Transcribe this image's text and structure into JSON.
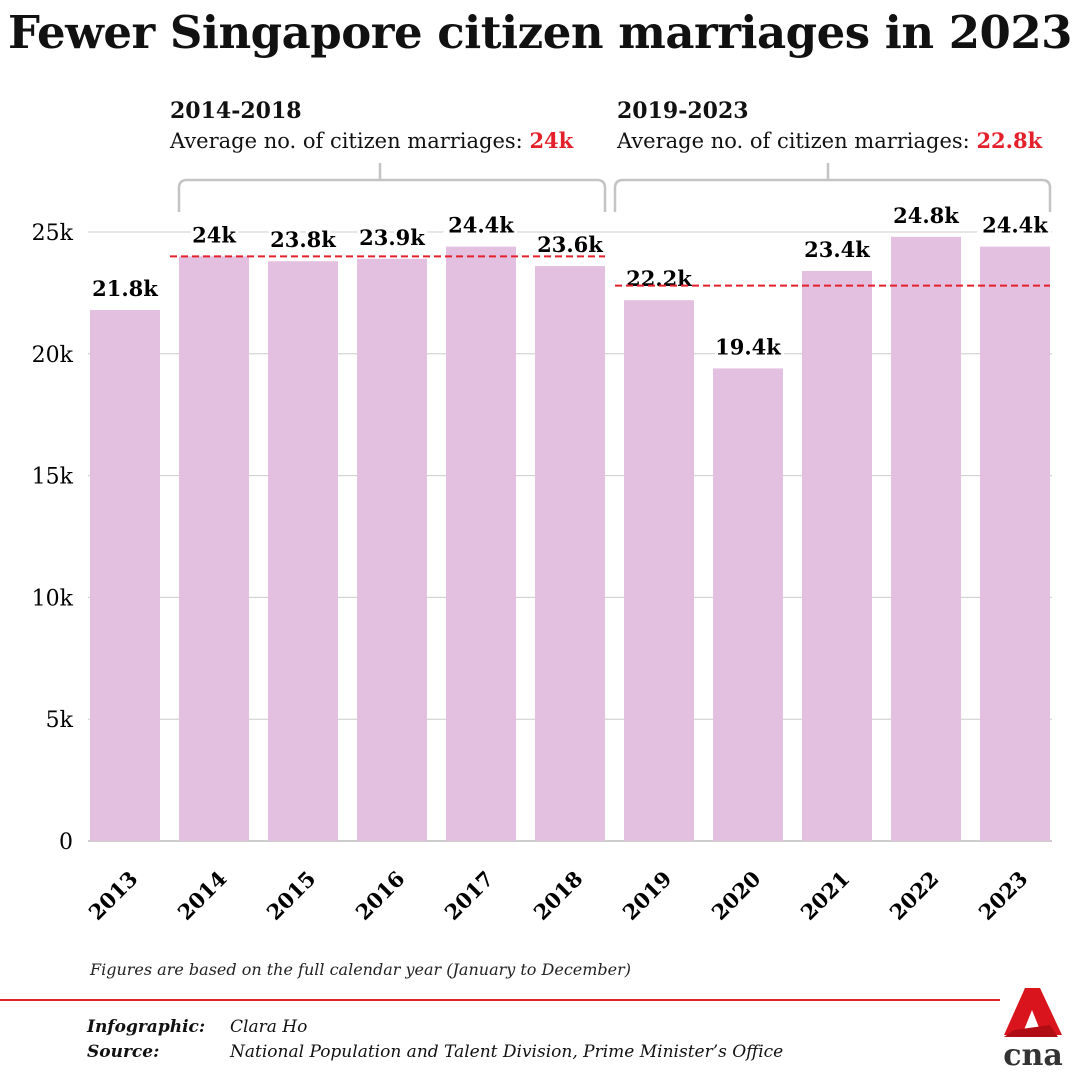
{
  "title": "Fewer Singapore citizen marriages in 2023",
  "groups": [
    {
      "period": "2014-2018",
      "label": "Average no. of citizen marriages:",
      "avg_label": "24k",
      "avg": 24000
    },
    {
      "period": "2019-2023",
      "label": "Average no. of citizen marriages:",
      "avg_label": "22.8k",
      "avg": 22800
    }
  ],
  "note": "Figures are based on the full calendar year (January to December)",
  "footer": {
    "infographic_label": "Infographic:",
    "infographic": "Clara Ho",
    "source_label": "Source:",
    "source": "National Population and Talent Division, Prime Minister’s Office",
    "logo": "cna"
  },
  "colors": {
    "bar": "#e3bfe0",
    "avg": "#e4202a",
    "grid": "#cccccc",
    "bracket": "#c4c4c4"
  },
  "chart_data": {
    "type": "bar",
    "title": "Fewer Singapore citizen marriages in 2023",
    "categories": [
      "2013",
      "2014",
      "2015",
      "2016",
      "2017",
      "2018",
      "2019",
      "2020",
      "2021",
      "2022",
      "2023"
    ],
    "values": [
      21800,
      24000,
      23800,
      23900,
      24400,
      23600,
      22200,
      19400,
      23400,
      24800,
      24400
    ],
    "value_labels": [
      "21.8k",
      "24k",
      "23.8k",
      "23.9k",
      "24.4k",
      "23.6k",
      "22.2k",
      "19.4k",
      "23.4k",
      "24.8k",
      "24.4k"
    ],
    "yticks": [
      0,
      5000,
      10000,
      15000,
      20000,
      25000
    ],
    "ytick_labels": [
      "0",
      "5k",
      "10k",
      "15k",
      "20k",
      "25k"
    ],
    "ylim": [
      0,
      25000
    ],
    "grid": true,
    "xlabel": "",
    "ylabel": ""
  }
}
